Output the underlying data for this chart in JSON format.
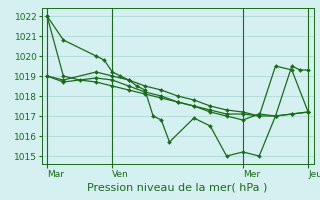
{
  "bg_color": "#d4f0f0",
  "grid_color": "#aad4d4",
  "line_color": "#1a6b1a",
  "markersize": 2.0,
  "linewidth": 0.9,
  "xlabel": "Pression niveau de la mer( hPa )",
  "xlabel_fontsize": 8,
  "tick_fontsize": 6.5,
  "ylim": [
    1014.6,
    1022.4
  ],
  "yticks": [
    1015,
    1016,
    1017,
    1018,
    1019,
    1020,
    1021,
    1022
  ],
  "day_labels": [
    "Mar",
    "Ven",
    "Mer",
    "Jeu"
  ],
  "total_hours": 96,
  "series1": {
    "x": [
      0,
      6,
      18,
      21,
      24,
      27,
      30,
      33,
      36,
      39,
      42,
      45,
      54,
      60,
      66,
      72,
      78,
      84,
      90,
      93,
      96
    ],
    "y": [
      1022.0,
      1020.8,
      1020.0,
      1019.8,
      1019.2,
      1019.0,
      1018.8,
      1018.5,
      1018.3,
      1017.0,
      1016.8,
      1015.7,
      1016.9,
      1016.5,
      1015.0,
      1015.2,
      1015.0,
      1017.0,
      1019.5,
      1019.3,
      1019.3
    ]
  },
  "series2": {
    "x": [
      0,
      6,
      18,
      24,
      30,
      36,
      42,
      48,
      54,
      60,
      66,
      72,
      78,
      84,
      90,
      96
    ],
    "y": [
      1019.0,
      1018.8,
      1019.2,
      1019.0,
      1018.8,
      1018.5,
      1018.3,
      1018.0,
      1017.8,
      1017.5,
      1017.3,
      1017.2,
      1017.0,
      1019.5,
      1019.3,
      1017.2
    ]
  },
  "series3": {
    "x": [
      0,
      6,
      18,
      24,
      30,
      36,
      42,
      48,
      54,
      60,
      66,
      72,
      78,
      84,
      90,
      96
    ],
    "y": [
      1019.0,
      1018.7,
      1018.9,
      1018.8,
      1018.5,
      1018.2,
      1018.0,
      1017.7,
      1017.5,
      1017.2,
      1017.0,
      1016.8,
      1017.1,
      1017.0,
      1017.1,
      1017.2
    ]
  },
  "series4": {
    "x": [
      0,
      6,
      12,
      18,
      24,
      30,
      36,
      42,
      48,
      54,
      60,
      66,
      72,
      78,
      84,
      90,
      96
    ],
    "y": [
      1022.0,
      1019.0,
      1018.8,
      1018.7,
      1018.5,
      1018.3,
      1018.1,
      1017.9,
      1017.7,
      1017.5,
      1017.3,
      1017.1,
      1017.1,
      1017.0,
      1017.0,
      1017.1,
      1017.2
    ]
  }
}
